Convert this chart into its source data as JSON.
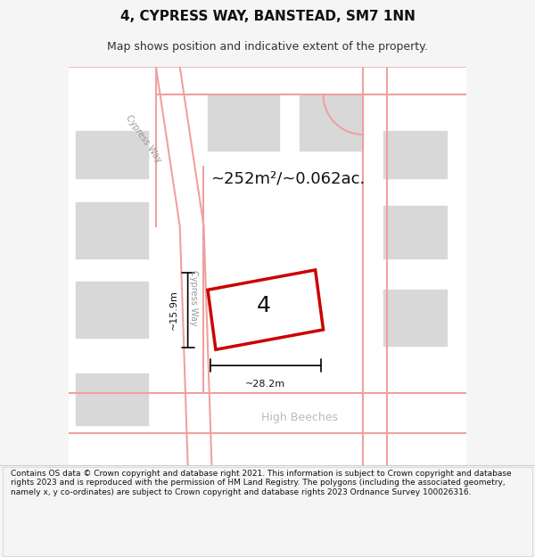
{
  "title": "4, CYPRESS WAY, BANSTEAD, SM7 1NN",
  "subtitle": "Map shows position and indicative extent of the property.",
  "area_text": "~252m²/~0.062ac.",
  "plot_number": "4",
  "dim_width": "~28.2m",
  "dim_height": "~15.9m",
  "street_label_1": "Cypress Way",
  "street_label_2": "Cypress Way",
  "street_label_3": "High Beeches",
  "footer_text": "Contains OS data © Crown copyright and database right 2021. This information is subject to Crown copyright and database rights 2023 and is reproduced with the permission of HM Land Registry. The polygons (including the associated geometry, namely x, y co-ordinates) are subject to Crown copyright and database rights 2023 Ordnance Survey 100026316.",
  "bg_color": "#f5f5f5",
  "map_bg": "#ffffff",
  "building_color": "#d8d8d8",
  "road_color": "#ffffff",
  "road_outline": "#f0a0a0",
  "plot_outline": "#cc0000",
  "plot_fill": "#ffffff",
  "text_color": "#333333",
  "footer_bg": "#ffffff"
}
